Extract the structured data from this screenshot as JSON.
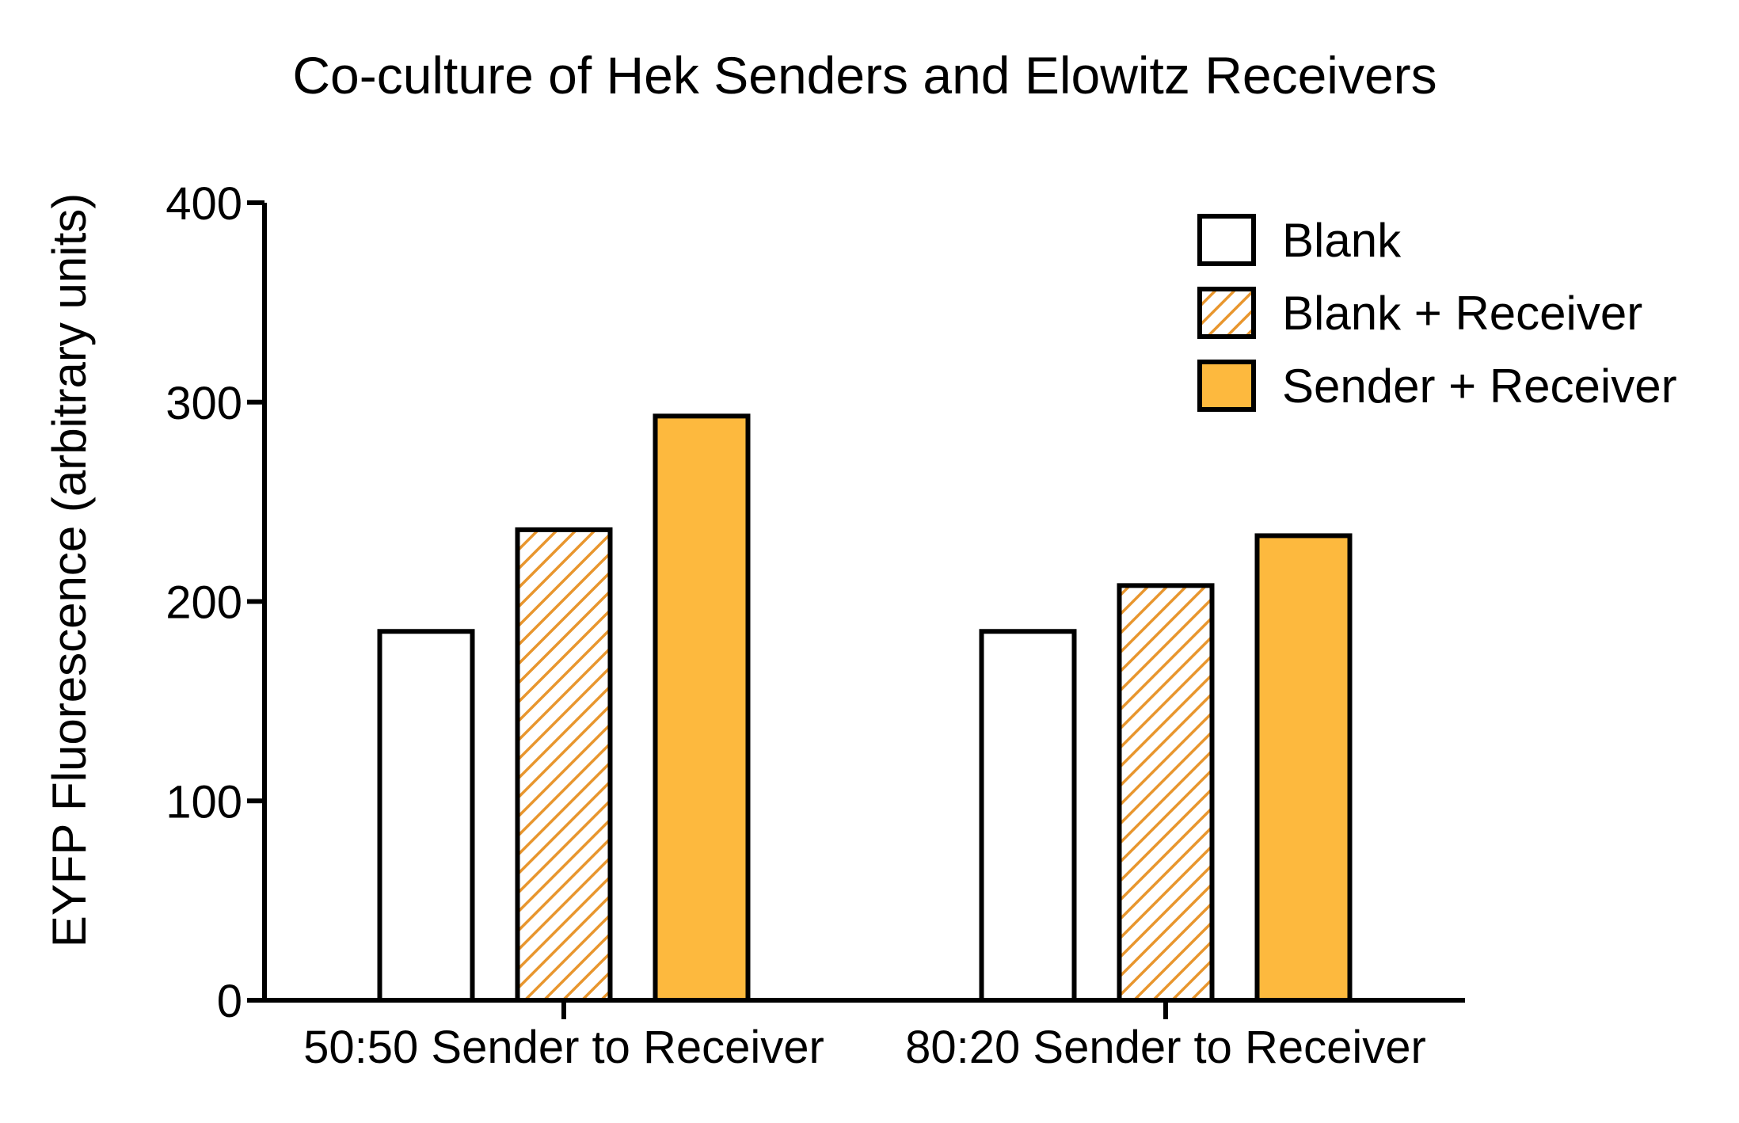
{
  "chart_data": {
    "type": "bar",
    "title": "Co-culture of Hek Senders and Elowitz Receivers",
    "xlabel": "",
    "ylabel": "EYFP Fluorescence (arbitrary units)",
    "ylim": [
      0,
      400
    ],
    "yticks": [
      0,
      100,
      200,
      300,
      400
    ],
    "grid": false,
    "legend_position": "top-right",
    "categories": [
      "50:50 Sender to Receiver",
      "80:20 Sender to Receiver"
    ],
    "series": [
      {
        "name": "Blank",
        "values": [
          185,
          185
        ],
        "fill": "#ffffff",
        "pattern": "none"
      },
      {
        "name": "Blank + Receiver",
        "values": [
          236,
          208
        ],
        "fill": "#ffffff",
        "pattern": "hatch",
        "hatch_color": "#E8962E"
      },
      {
        "name": "Sender + Receiver",
        "values": [
          293,
          233
        ],
        "fill": "#FDB93E",
        "pattern": "none"
      }
    ]
  },
  "colors": {
    "accent_orange": "#FDB93E",
    "hatch_orange": "#E8962E",
    "outline": "#000000"
  }
}
